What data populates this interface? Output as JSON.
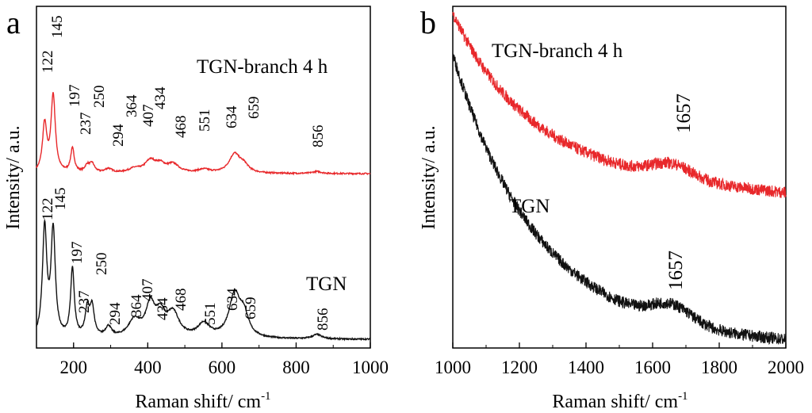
{
  "chart_data": [
    {
      "panel": "a",
      "type": "line",
      "xlabel": "Raman shift/ cm",
      "xlabel_sup": "-1",
      "ylabel": "Intensity/ a.u.",
      "xlim": [
        100,
        1000
      ],
      "ylim": [
        0,
        1
      ],
      "xticks": [
        200,
        400,
        600,
        800,
        1000
      ],
      "grid": false,
      "series": [
        {
          "name": "TGN-branch 4 h",
          "color": "#e8282b",
          "baseline": 0.51,
          "slope": 0,
          "peaks": [
            {
              "x": 122,
              "h": 0.14,
              "w": 7
            },
            {
              "x": 145,
              "h": 0.225,
              "w": 7
            },
            {
              "x": 197,
              "h": 0.07,
              "w": 6
            },
            {
              "x": 237,
              "h": 0.02,
              "w": 8
            },
            {
              "x": 250,
              "h": 0.025,
              "w": 8
            },
            {
              "x": 294,
              "h": 0.012,
              "w": 12
            },
            {
              "x": 364,
              "h": 0.012,
              "w": 20
            },
            {
              "x": 407,
              "h": 0.035,
              "w": 18
            },
            {
              "x": 434,
              "h": 0.02,
              "w": 15
            },
            {
              "x": 468,
              "h": 0.025,
              "w": 20
            },
            {
              "x": 551,
              "h": 0.01,
              "w": 20
            },
            {
              "x": 634,
              "h": 0.055,
              "w": 18
            },
            {
              "x": 659,
              "h": 0.02,
              "w": 15
            },
            {
              "x": 856,
              "h": 0.006,
              "w": 15
            }
          ],
          "peak_labels": [
            "122",
            "145",
            "197",
            "237",
            "250",
            "294",
            "364",
            "407",
            "434",
            "468",
            "551",
            "634",
            "659",
            "856"
          ]
        },
        {
          "name": "TGN",
          "color": "#111111",
          "baseline": 0.025,
          "slope": 0,
          "peaks": [
            {
              "x": 122,
              "h": 0.32,
              "w": 7
            },
            {
              "x": 145,
              "h": 0.31,
              "w": 7
            },
            {
              "x": 197,
              "h": 0.2,
              "w": 6
            },
            {
              "x": 237,
              "h": 0.08,
              "w": 7
            },
            {
              "x": 250,
              "h": 0.085,
              "w": 7
            },
            {
              "x": 294,
              "h": 0.03,
              "w": 10
            },
            {
              "x": 364,
              "h": 0.05,
              "w": 20
            },
            {
              "x": 407,
              "h": 0.09,
              "w": 15
            },
            {
              "x": 434,
              "h": 0.06,
              "w": 15
            },
            {
              "x": 468,
              "h": 0.07,
              "w": 20
            },
            {
              "x": 551,
              "h": 0.04,
              "w": 20
            },
            {
              "x": 634,
              "h": 0.125,
              "w": 18
            },
            {
              "x": 659,
              "h": 0.06,
              "w": 15
            },
            {
              "x": 856,
              "h": 0.013,
              "w": 15
            }
          ],
          "peak_labels": [
            "122",
            "145",
            "197",
            "237",
            "250",
            "294",
            "364",
            "407",
            "434",
            "468",
            "551",
            "634",
            "659",
            "856"
          ]
        }
      ]
    },
    {
      "panel": "b",
      "type": "line",
      "xlabel": "Raman shift/ cm",
      "xlabel_sup": "-1",
      "ylabel": "Intensity/ a.u.",
      "xlim": [
        1000,
        2000
      ],
      "ylim": [
        0,
        1
      ],
      "xticks": [
        1000,
        1200,
        1400,
        1600,
        1800,
        2000
      ],
      "grid": false,
      "series": [
        {
          "name": "TGN-branch 4 h",
          "color": "#e8282b",
          "decay": {
            "amp": 0.45,
            "k": 0.0045,
            "offset": 0.53,
            "slope": -8e-05
          },
          "peaks": [
            {
              "x": 1657,
              "h": 0.04,
              "w": 60
            }
          ],
          "peak_labels": [
            "1657"
          ]
        },
        {
          "name": "TGN",
          "color": "#111111",
          "decay": {
            "amp": 0.82,
            "k": 0.004,
            "offset": 0.04,
            "slope": -3e-05
          },
          "peaks": [
            {
              "x": 1657,
              "h": 0.05,
              "w": 60
            }
          ],
          "peak_labels": [
            "1657"
          ]
        }
      ]
    }
  ]
}
